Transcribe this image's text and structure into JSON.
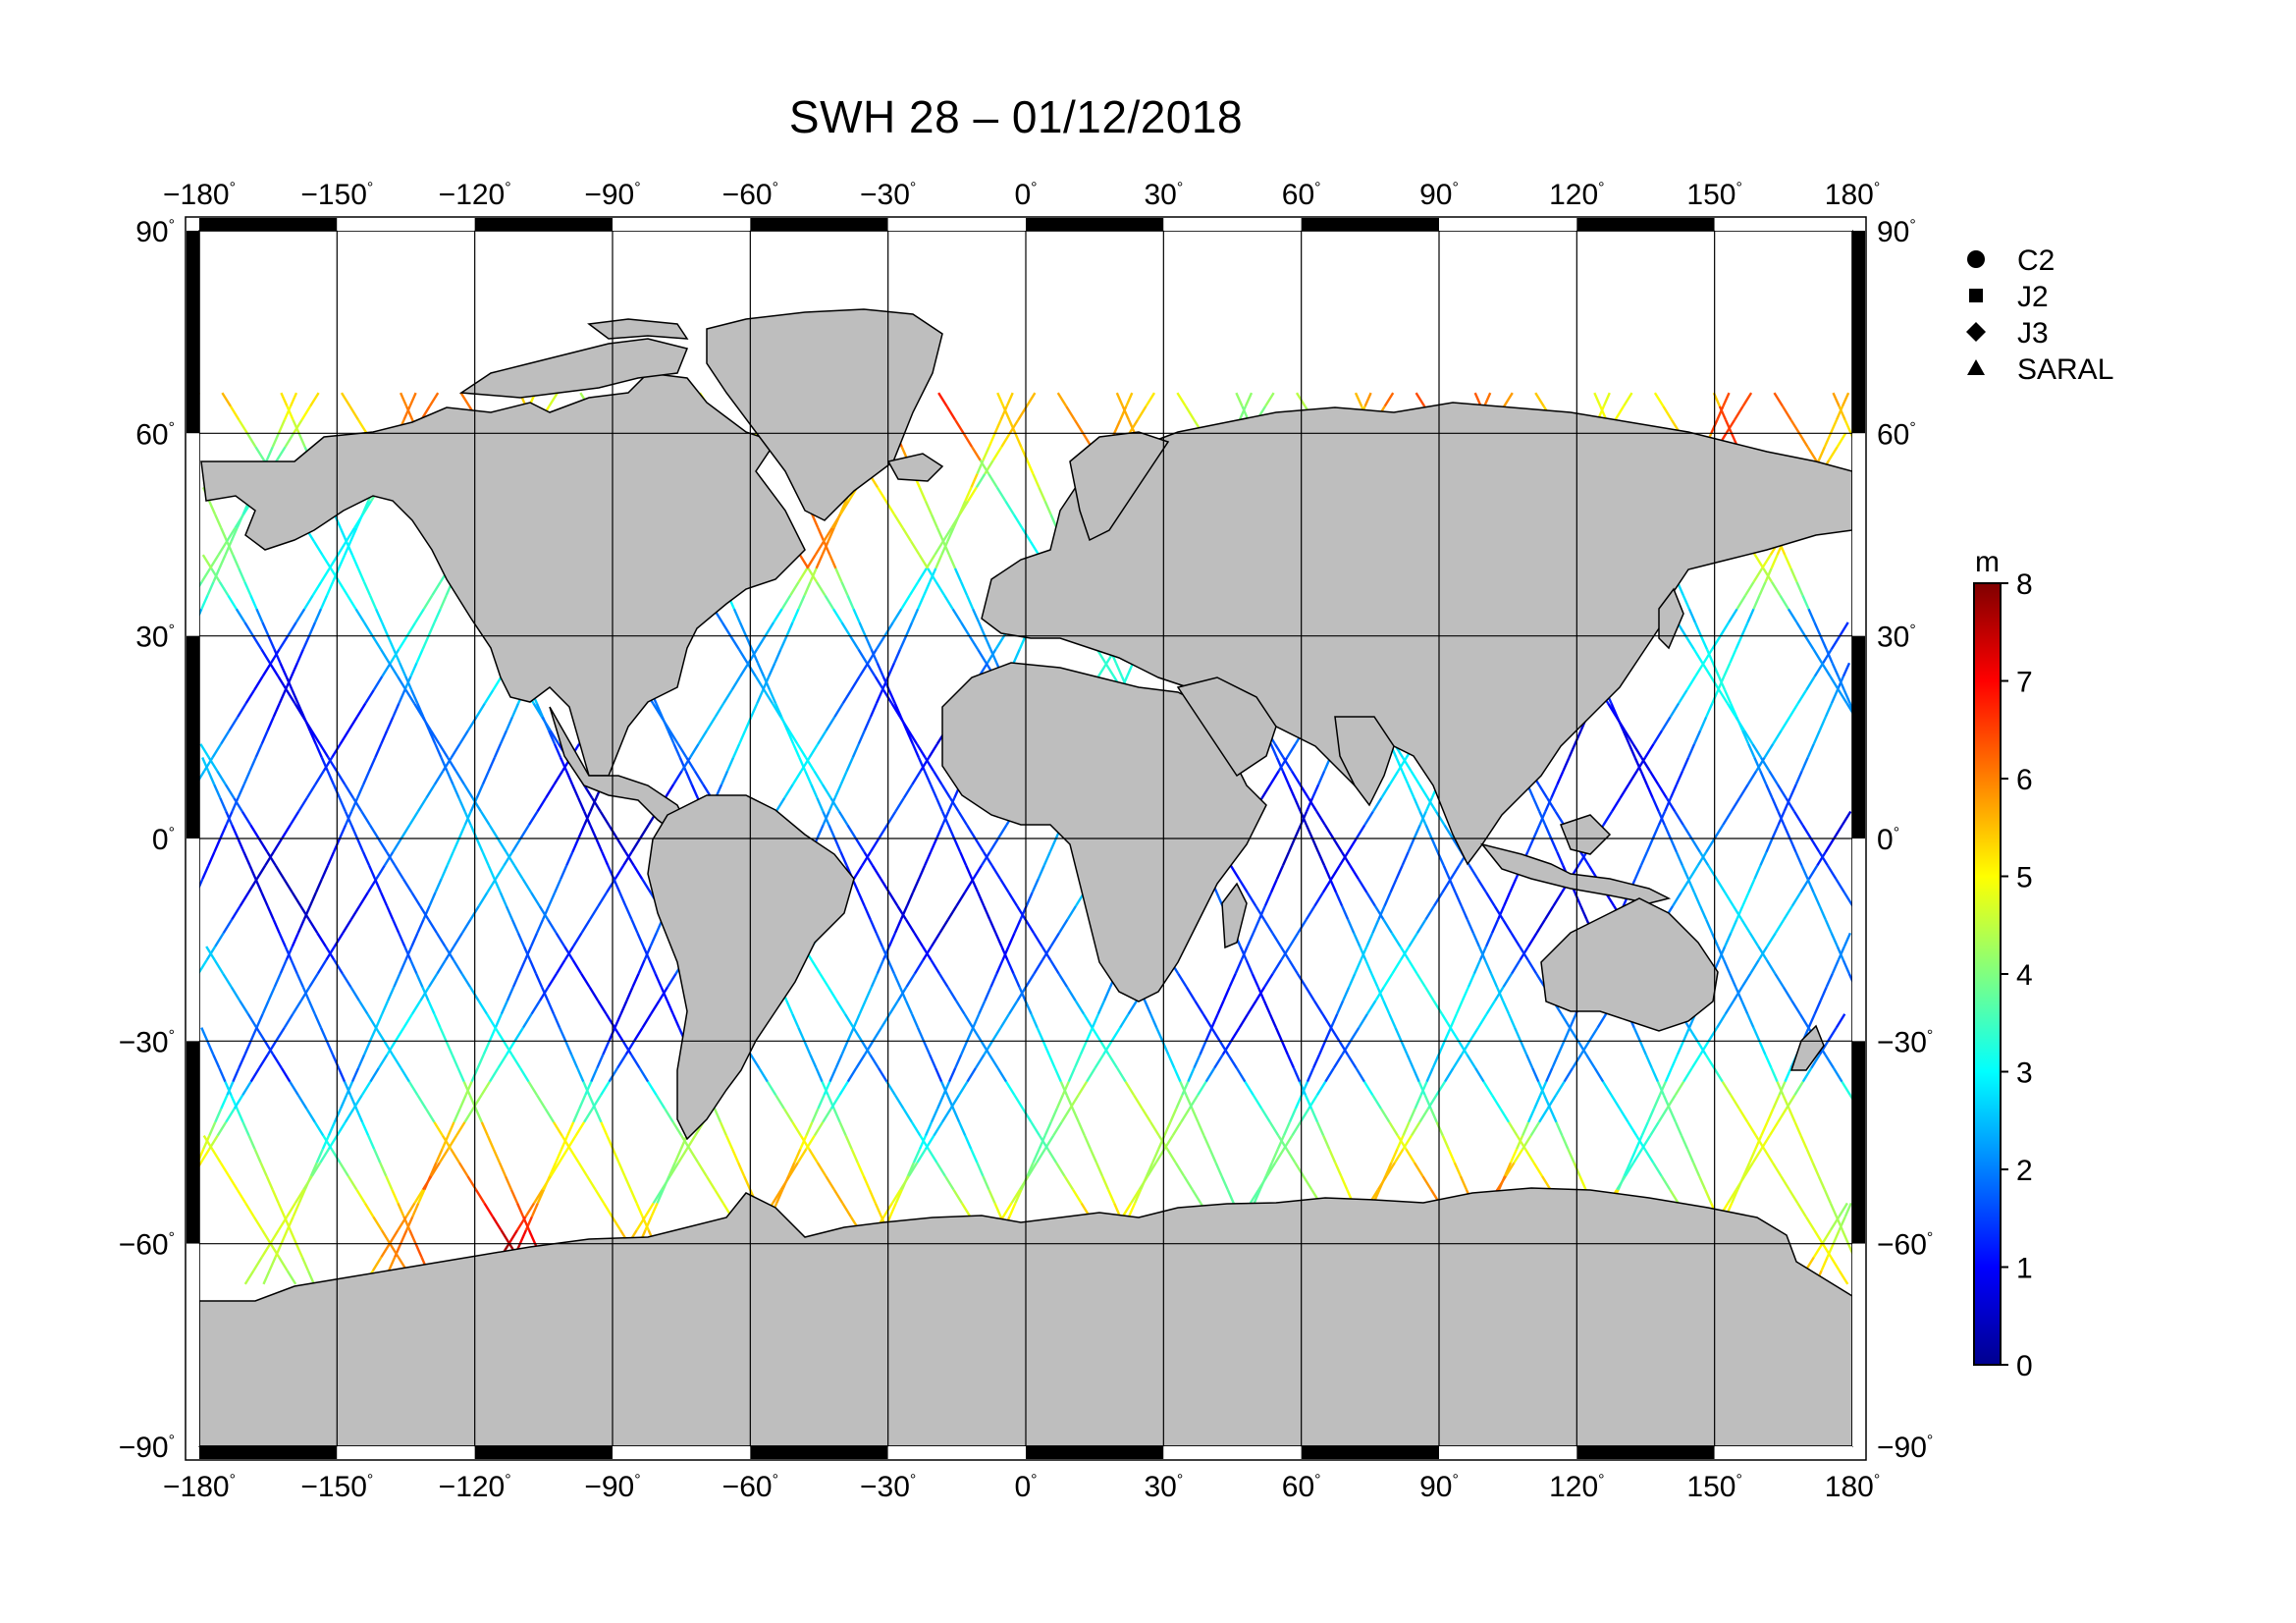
{
  "title": "SWH 28 – 01/12/2018",
  "map": {
    "projection": "equirectangular",
    "lon_range": [
      -180,
      180
    ],
    "lat_range": [
      -90,
      90
    ],
    "lon_ticks": [
      -180,
      -150,
      -120,
      -90,
      -60,
      -30,
      0,
      30,
      60,
      90,
      120,
      150,
      180
    ],
    "lat_ticks": [
      90,
      60,
      30,
      0,
      -30,
      -60,
      -90
    ],
    "lon_tick_labels": [
      "−180",
      "−150",
      "−120",
      "−90",
      "−60",
      "−30",
      "0",
      "30",
      "60",
      "90",
      "120",
      "150",
      "180"
    ],
    "lat_tick_labels": [
      "90",
      "60",
      "30",
      "0",
      "−30",
      "−60",
      "−90"
    ],
    "degree_symbol": "°",
    "grid": true,
    "land_color": "#bebebe",
    "ocean_color": "#ffffff"
  },
  "legend": {
    "placement": "top-right",
    "entries": [
      {
        "label": "C2",
        "marker": "circle"
      },
      {
        "label": "J2",
        "marker": "square"
      },
      {
        "label": "J3",
        "marker": "diamond"
      },
      {
        "label": "SARAL",
        "marker": "triangle"
      }
    ]
  },
  "colorbar": {
    "unit": "m",
    "min": 0,
    "max": 8,
    "ticks": [
      "0",
      "1",
      "2",
      "3",
      "4",
      "5",
      "6",
      "7",
      "8"
    ],
    "colormap": [
      "#00008f",
      "#0000ff",
      "#0080ff",
      "#00ffff",
      "#80ff80",
      "#ffff00",
      "#ff8000",
      "#ff0000",
      "#800000"
    ]
  }
}
